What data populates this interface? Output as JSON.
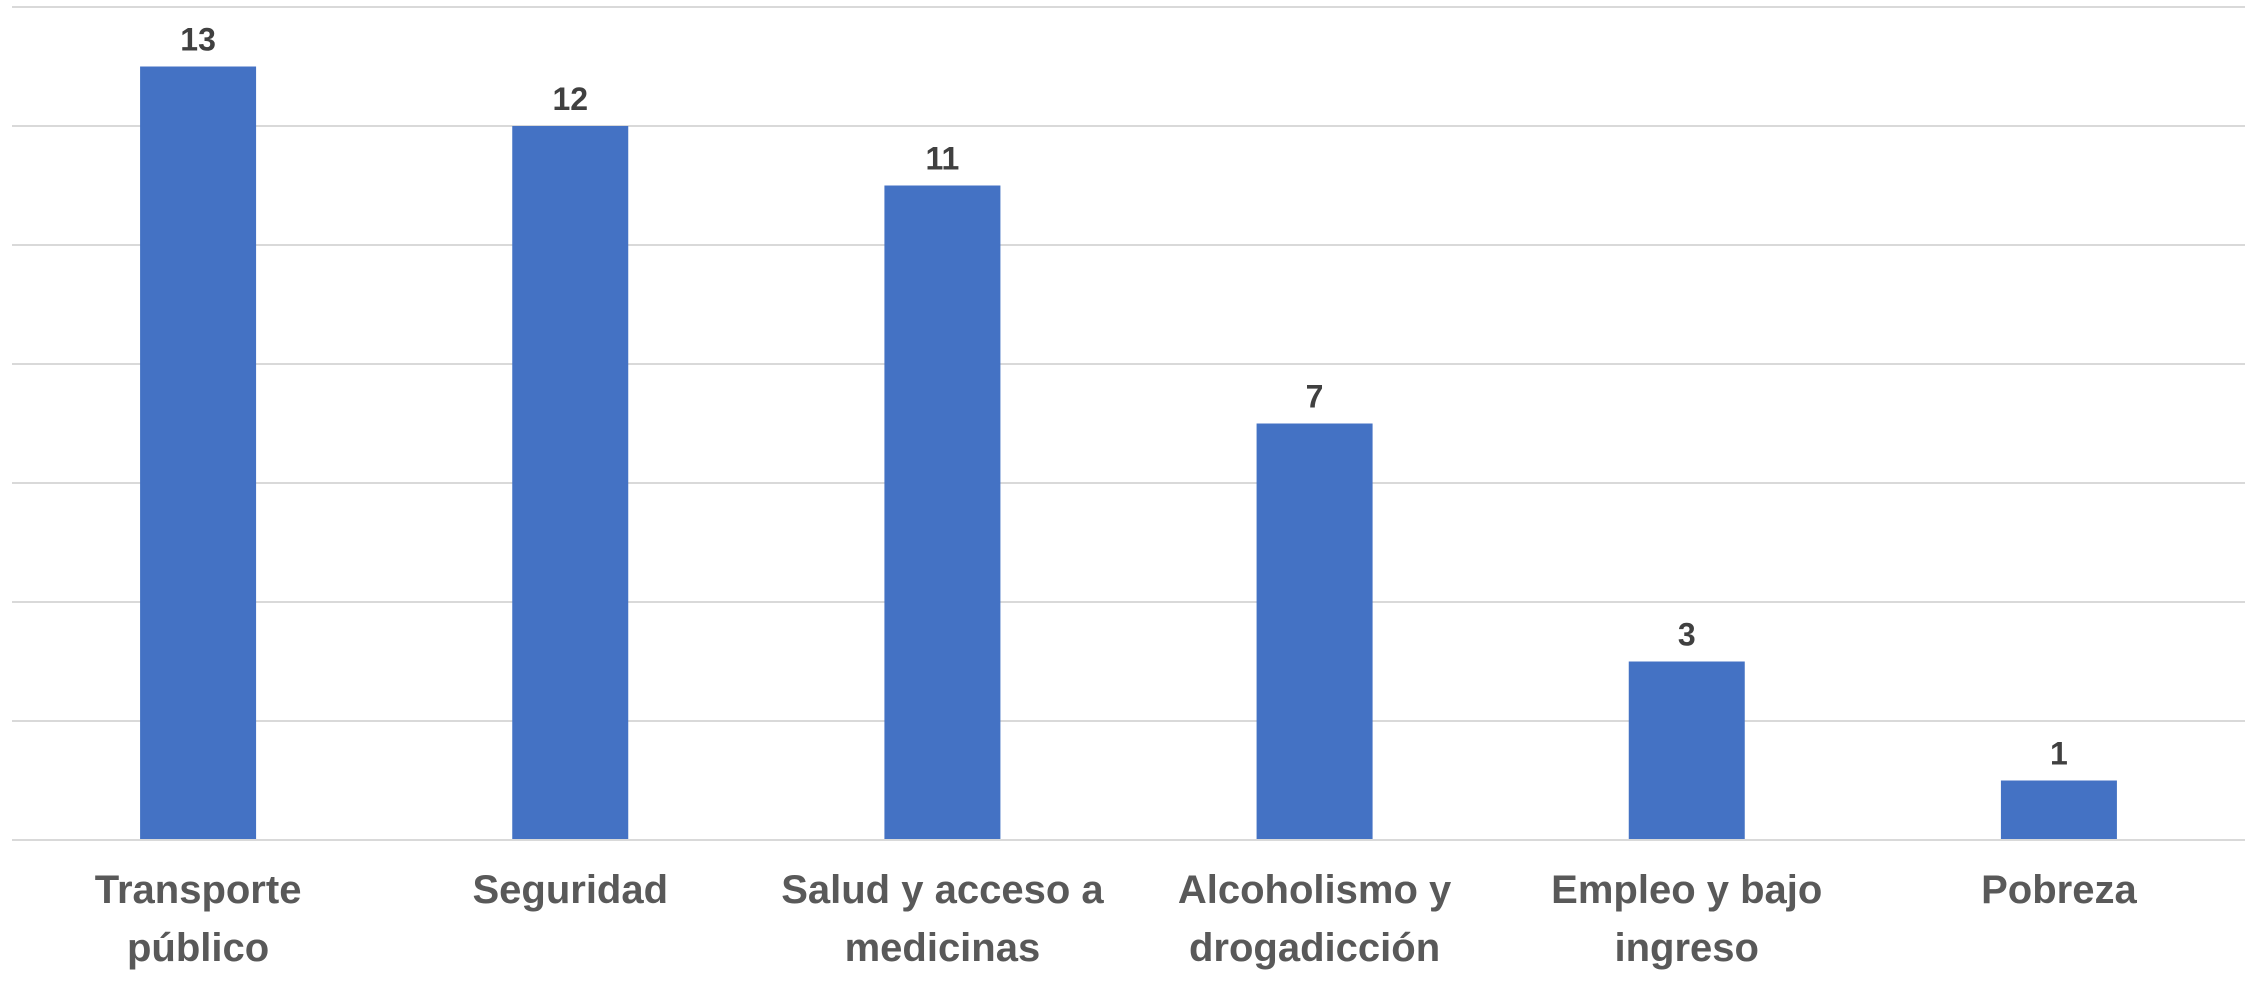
{
  "chart_data": {
    "type": "bar",
    "categories": [
      [
        "Transporte",
        "público"
      ],
      [
        "Seguridad"
      ],
      [
        "Salud y acceso a",
        "medicinas"
      ],
      [
        "Alcoholismo y",
        "drogadicción"
      ],
      [
        "Empleo y bajo",
        "ingreso"
      ],
      [
        "Pobreza"
      ]
    ],
    "values": [
      13,
      12,
      11,
      7,
      3,
      1
    ],
    "data_labels": [
      "13",
      "12",
      "11",
      "7",
      "3",
      "1"
    ],
    "title": "",
    "xlabel": "",
    "ylabel": "",
    "ylim": [
      0,
      14
    ],
    "grid_step": 2,
    "grid": true,
    "legend": "none",
    "bar_color": "#4472c4"
  }
}
